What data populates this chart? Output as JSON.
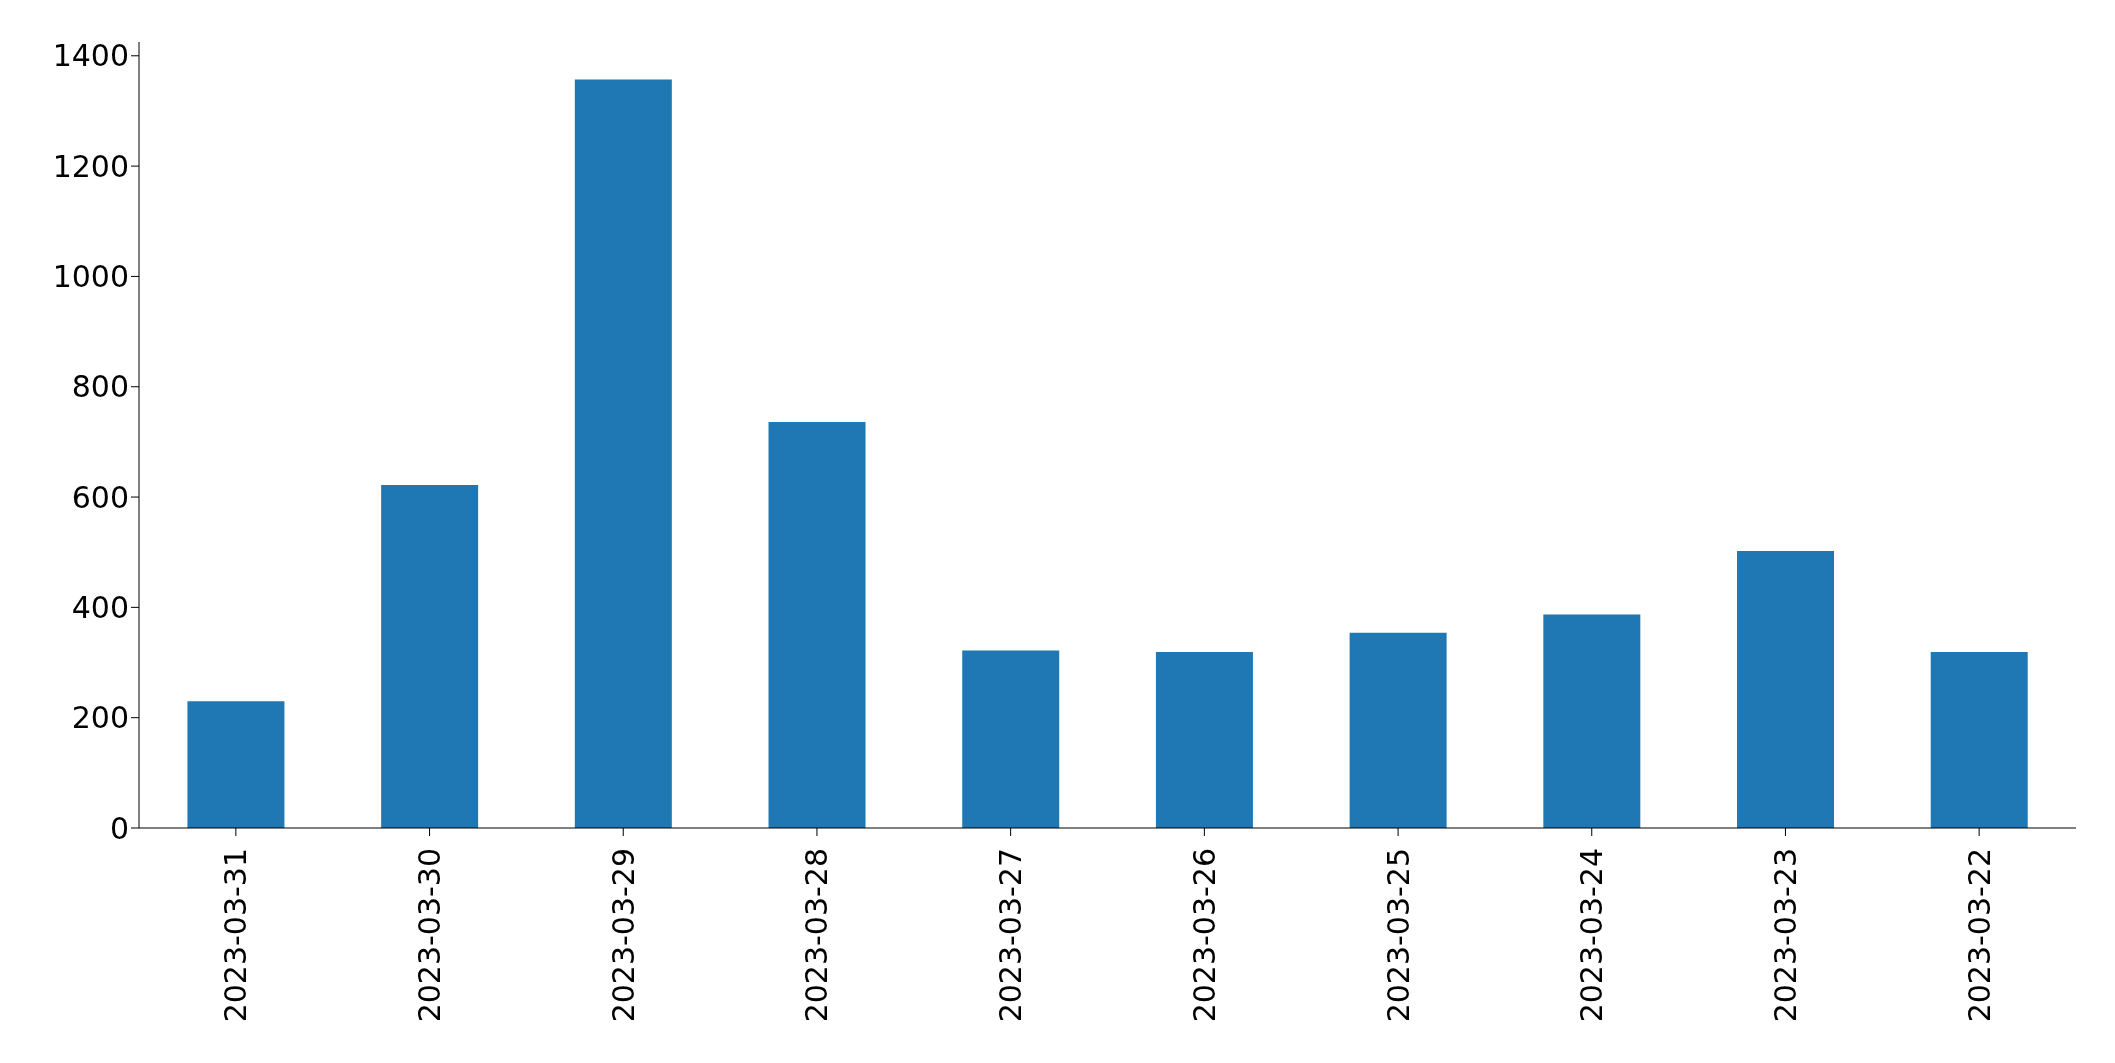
{
  "chart_data": {
    "type": "bar",
    "categories": [
      "2023-03-31",
      "2023-03-30",
      "2023-03-29",
      "2023-03-28",
      "2023-03-27",
      "2023-03-26",
      "2023-03-25",
      "2023-03-24",
      "2023-03-23",
      "2023-03-22"
    ],
    "values": [
      230,
      622,
      1357,
      736,
      322,
      319,
      354,
      387,
      502,
      319
    ],
    "color": "#1f77b4",
    "ylim": [
      0,
      1425
    ],
    "yticks": [
      0,
      200,
      400,
      600,
      800,
      1000,
      1200,
      1400
    ],
    "grid": false,
    "legend": false
  }
}
